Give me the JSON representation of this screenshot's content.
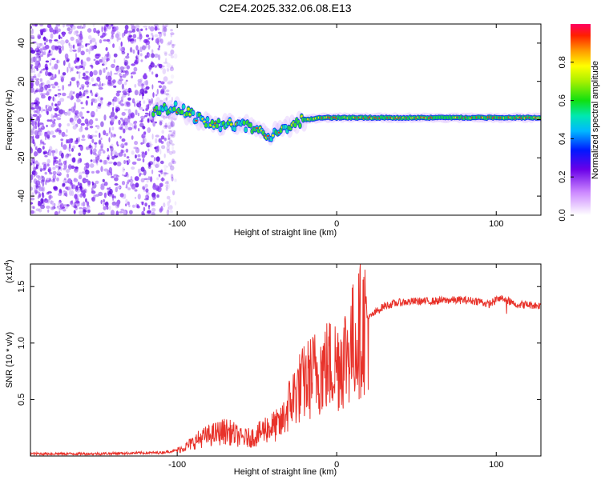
{
  "title": "C2E4.2025.332.06.08.E13",
  "chart_data": [
    {
      "type": "heatmap",
      "id": "spectrogram",
      "xlabel": "Height of straight line (km)",
      "ylabel": "Frequency (Hz)",
      "xlim": [
        -192,
        128
      ],
      "ylim": [
        -50,
        50
      ],
      "xticks": [
        -100,
        0,
        100
      ],
      "yticks": [
        -40,
        -20,
        0,
        20,
        40
      ],
      "colorbar": {
        "label": "Normalized spectral amplitude",
        "range": [
          0,
          1
        ],
        "ticks": [
          0.0,
          0.2,
          0.4,
          0.6,
          0.8
        ]
      },
      "track": {
        "x": [
          -115,
          -100,
          -90,
          -80,
          -70,
          -60,
          -50,
          -40,
          -30,
          -20,
          -10,
          0,
          20,
          40,
          60,
          80,
          100,
          128
        ],
        "y": [
          5,
          6,
          2,
          -2,
          -3,
          -2,
          -6,
          -8,
          -3,
          0,
          1,
          1,
          1,
          1,
          1,
          1,
          1,
          1
        ]
      },
      "noise_region_x": [
        -192,
        -100
      ]
    },
    {
      "type": "line",
      "id": "snr",
      "xlabel": "Height of straight line (km)",
      "ylabel": "SNR (10 * v/v)",
      "scale_label": "(x10",
      "scale_exp": "4",
      "xlim": [
        -192,
        128
      ],
      "ylim": [
        0,
        1.7
      ],
      "xticks": [
        -100,
        0,
        100
      ],
      "yticks": [
        0.5,
        1.0,
        1.5
      ],
      "series": [
        {
          "name": "SNR",
          "color": "#e8322a",
          "x": [
            -192,
            -150,
            -110,
            -100,
            -95,
            -90,
            -85,
            -80,
            -75,
            -70,
            -65,
            -60,
            -55,
            -50,
            -45,
            -40,
            -35,
            -30,
            -25,
            -20,
            -15,
            -10,
            -5,
            0,
            5,
            10,
            15,
            20,
            25,
            30,
            40,
            50,
            60,
            70,
            80,
            90,
            95,
            100,
            105,
            110,
            115,
            120,
            128
          ],
          "y": [
            0.02,
            0.02,
            0.03,
            0.05,
            0.08,
            0.12,
            0.16,
            0.18,
            0.2,
            0.22,
            0.2,
            0.16,
            0.16,
            0.18,
            0.24,
            0.26,
            0.28,
            0.45,
            0.58,
            0.65,
            0.72,
            0.77,
            0.8,
            0.82,
            0.9,
            1.0,
            1.12,
            1.22,
            1.28,
            1.33,
            1.36,
            1.37,
            1.37,
            1.38,
            1.38,
            1.37,
            1.34,
            1.38,
            1.4,
            1.35,
            1.34,
            1.34,
            1.33
          ]
        }
      ]
    }
  ]
}
